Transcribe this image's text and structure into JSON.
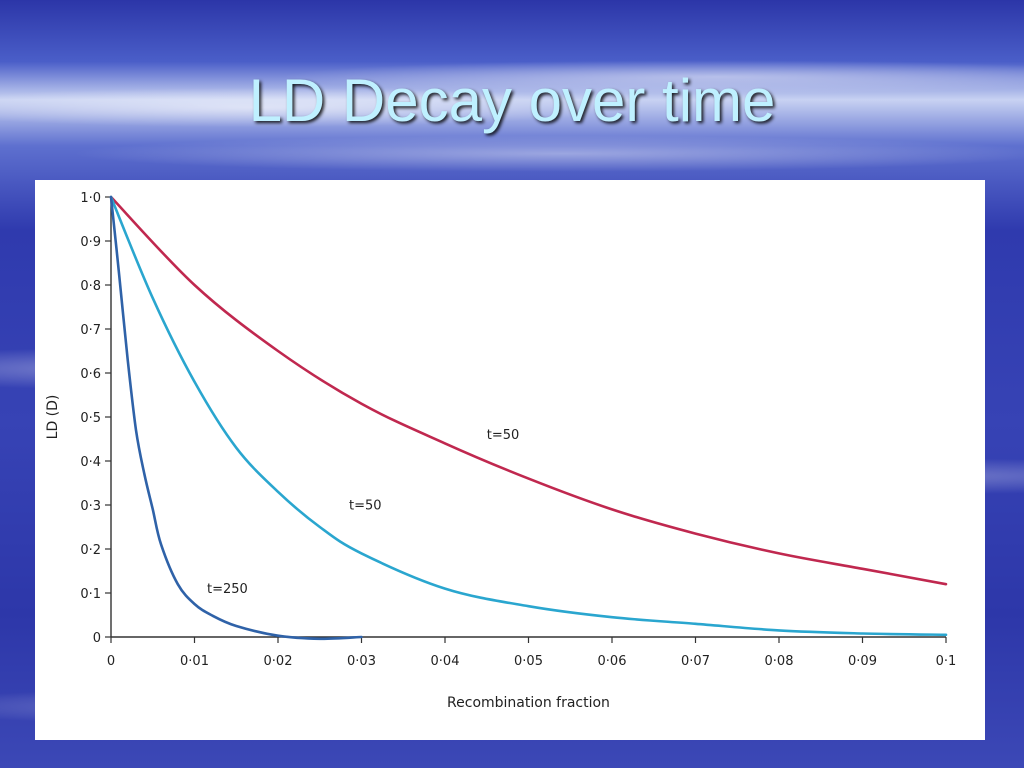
{
  "slide": {
    "title": "LD Decay over time"
  },
  "chart_data": {
    "type": "line",
    "title": "",
    "xlabel": "Recombination fraction",
    "ylabel": "LD (D)",
    "xlim": [
      0,
      0.1
    ],
    "ylim": [
      0,
      1.0
    ],
    "grid": false,
    "x_ticks": [
      "0",
      "0·01",
      "0·02",
      "0·03",
      "0·04",
      "0·05",
      "0·06",
      "0·07",
      "0·08",
      "0·09",
      "0·1"
    ],
    "y_ticks": [
      "0",
      "0·1",
      "0·2",
      "0·3",
      "0·4",
      "0·5",
      "0·6",
      "0·7",
      "0·8",
      "0·9",
      "1·0"
    ],
    "series": [
      {
        "name": "t=50",
        "color": "#c0284f",
        "label_at": [
          0.045,
          0.45
        ],
        "x": [
          0,
          0.01,
          0.02,
          0.03,
          0.04,
          0.05,
          0.06,
          0.07,
          0.08,
          0.09,
          0.1
        ],
        "y": [
          1.0,
          0.8,
          0.65,
          0.53,
          0.44,
          0.36,
          0.29,
          0.235,
          0.19,
          0.155,
          0.12
        ]
      },
      {
        "name": "t=50",
        "color": "#2aa6cf",
        "label_at": [
          0.0285,
          0.29
        ],
        "x": [
          0,
          0.005,
          0.01,
          0.015,
          0.02,
          0.025,
          0.03,
          0.04,
          0.05,
          0.06,
          0.07,
          0.08,
          0.09,
          0.1
        ],
        "y": [
          1.0,
          0.77,
          0.58,
          0.43,
          0.33,
          0.25,
          0.19,
          0.11,
          0.07,
          0.045,
          0.03,
          0.015,
          0.008,
          0.005
        ]
      },
      {
        "name": "t=250",
        "color": "#2f62a8",
        "label_at": [
          0.0115,
          0.1
        ],
        "x": [
          0,
          0.001,
          0.002,
          0.003,
          0.004,
          0.005,
          0.006,
          0.008,
          0.01,
          0.012,
          0.015,
          0.02,
          0.025,
          0.03
        ],
        "y": [
          1.0,
          0.82,
          0.63,
          0.47,
          0.37,
          0.29,
          0.21,
          0.12,
          0.075,
          0.05,
          0.025,
          0.003,
          -0.004,
          0.0
        ]
      }
    ]
  }
}
